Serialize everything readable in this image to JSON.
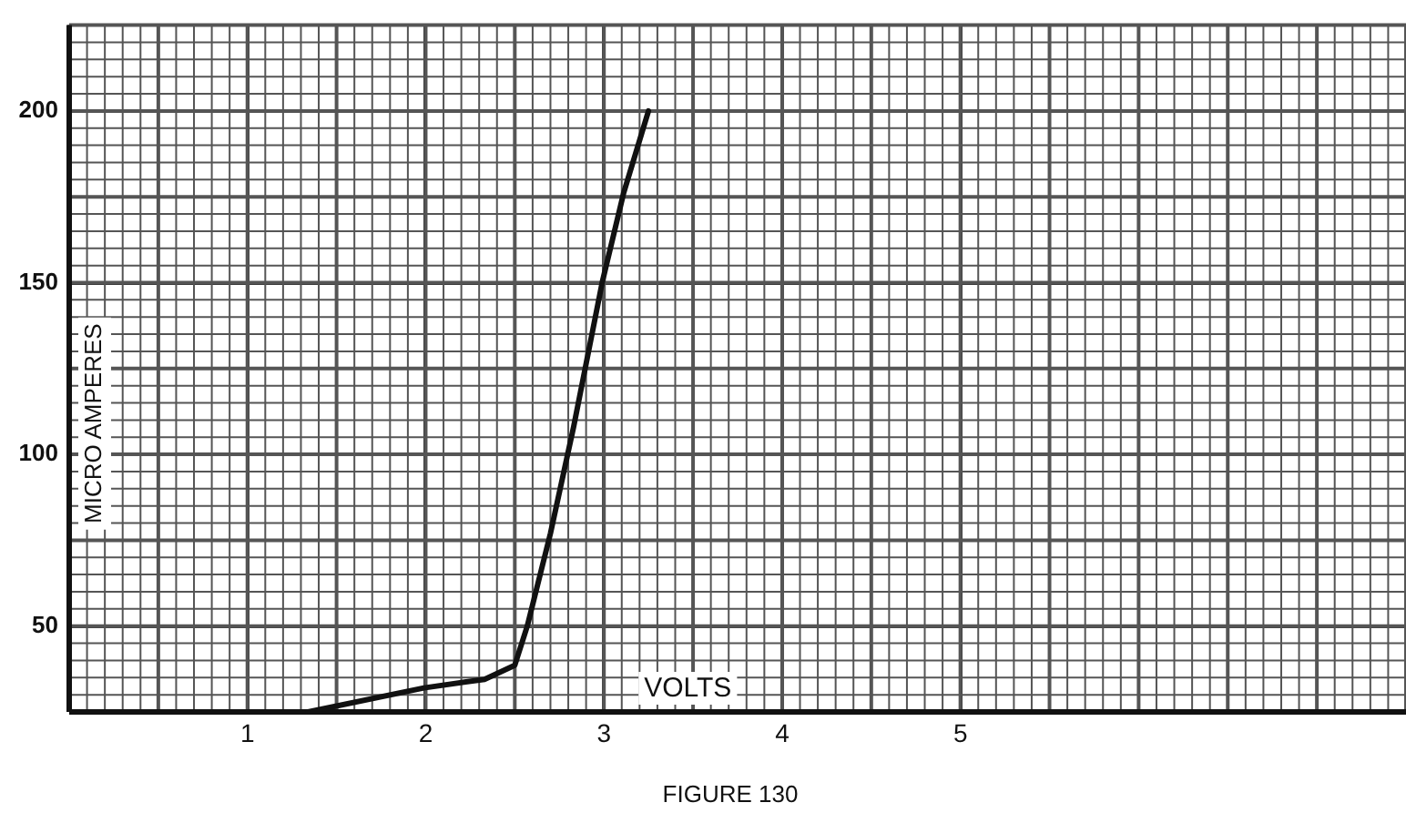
{
  "chart_data": {
    "type": "line",
    "xlabel": "VOLTS",
    "ylabel": "MICRO AMPERES",
    "annotations": [
      "FIGURE 130"
    ],
    "series": [
      {
        "color": "#111111",
        "x": [
          1.34,
          1.99,
          2.33,
          2.5,
          2.57,
          2.7,
          2.83,
          2.99,
          3.11,
          3.25
        ],
        "values": [
          25,
          32,
          34.5,
          38.6,
          50,
          77,
          108,
          150,
          176,
          200
        ]
      }
    ],
    "xlim": [
      0,
      7.5
    ],
    "xticks": [
      1,
      2,
      3,
      4,
      5
    ],
    "ylim": [
      25,
      225
    ],
    "yticks": [
      50,
      100,
      150,
      200
    ],
    "grid": true,
    "marker": "none",
    "line_style": "solid"
  }
}
